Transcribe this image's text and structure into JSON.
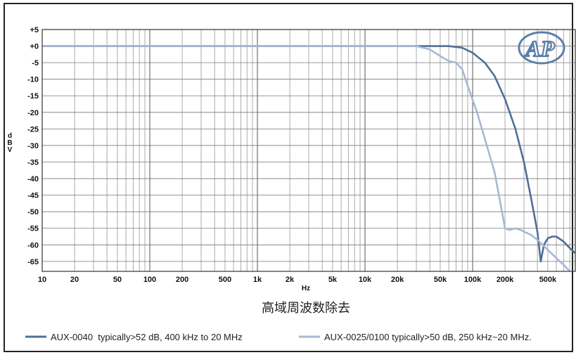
{
  "chart_data": {
    "type": "line",
    "title": "",
    "caption": "高域周波数除去",
    "xlabel": "Hz",
    "ylabel": "dBV",
    "x_scale": "log",
    "xlim": [
      10,
      900000
    ],
    "ylim": [
      -68,
      5
    ],
    "grid": true,
    "legend_placement": "bottom",
    "y_ticks": [
      "+5",
      "+0",
      "-5",
      "-10",
      "-15",
      "-20",
      "-25",
      "-30",
      "-35",
      "-40",
      "-45",
      "-50",
      "-55",
      "-60",
      "-65"
    ],
    "y_tick_values": [
      5,
      0,
      -5,
      -10,
      -15,
      -20,
      -25,
      -30,
      -35,
      -40,
      -45,
      -50,
      -55,
      -60,
      -65
    ],
    "x_ticks": [
      "10",
      "20",
      "50",
      "100",
      "200",
      "500",
      "1k",
      "2k",
      "5k",
      "10k",
      "20k",
      "50k",
      "100k",
      "200k",
      "500k"
    ],
    "x_tick_values": [
      10,
      20,
      50,
      100,
      200,
      500,
      1000,
      2000,
      5000,
      10000,
      20000,
      50000,
      100000,
      200000,
      500000
    ],
    "series": [
      {
        "name": "AUX-0040  typically>52 dB, 400 kHz to 20 MHz",
        "color": "#4f6f96",
        "x": [
          10,
          1000,
          10000,
          30000,
          60000,
          80000,
          100000,
          130000,
          160000,
          200000,
          250000,
          300000,
          350000,
          400000,
          430000,
          460000,
          500000,
          550000,
          600000,
          700000,
          800000,
          900000
        ],
        "y": [
          0,
          0,
          0,
          0,
          0,
          -0.5,
          -2,
          -5,
          -9,
          -16,
          -25,
          -35,
          -46,
          -56,
          -65,
          -60,
          -58,
          -57.5,
          -57.5,
          -59,
          -61,
          -62.5
        ]
      },
      {
        "name": "AUX-0025/0100 typically>50 dB, 250 kHz~20 MHz.",
        "color": "#a5b9d2",
        "x": [
          10,
          1000,
          10000,
          30000,
          40000,
          50000,
          60000,
          70000,
          80000,
          90000,
          110000,
          130000,
          160000,
          200000,
          220000,
          250000,
          280000,
          300000,
          350000,
          400000,
          450000,
          500000,
          600000,
          700000,
          800000
        ],
        "y": [
          0,
          0,
          0,
          0,
          -1,
          -3,
          -4.5,
          -5,
          -7,
          -12,
          -20,
          -28,
          -38,
          -55,
          -55.5,
          -55,
          -55.5,
          -56,
          -57,
          -58.5,
          -60,
          -61.5,
          -64,
          -66,
          -68
        ]
      }
    ]
  },
  "logo_text": "AP"
}
